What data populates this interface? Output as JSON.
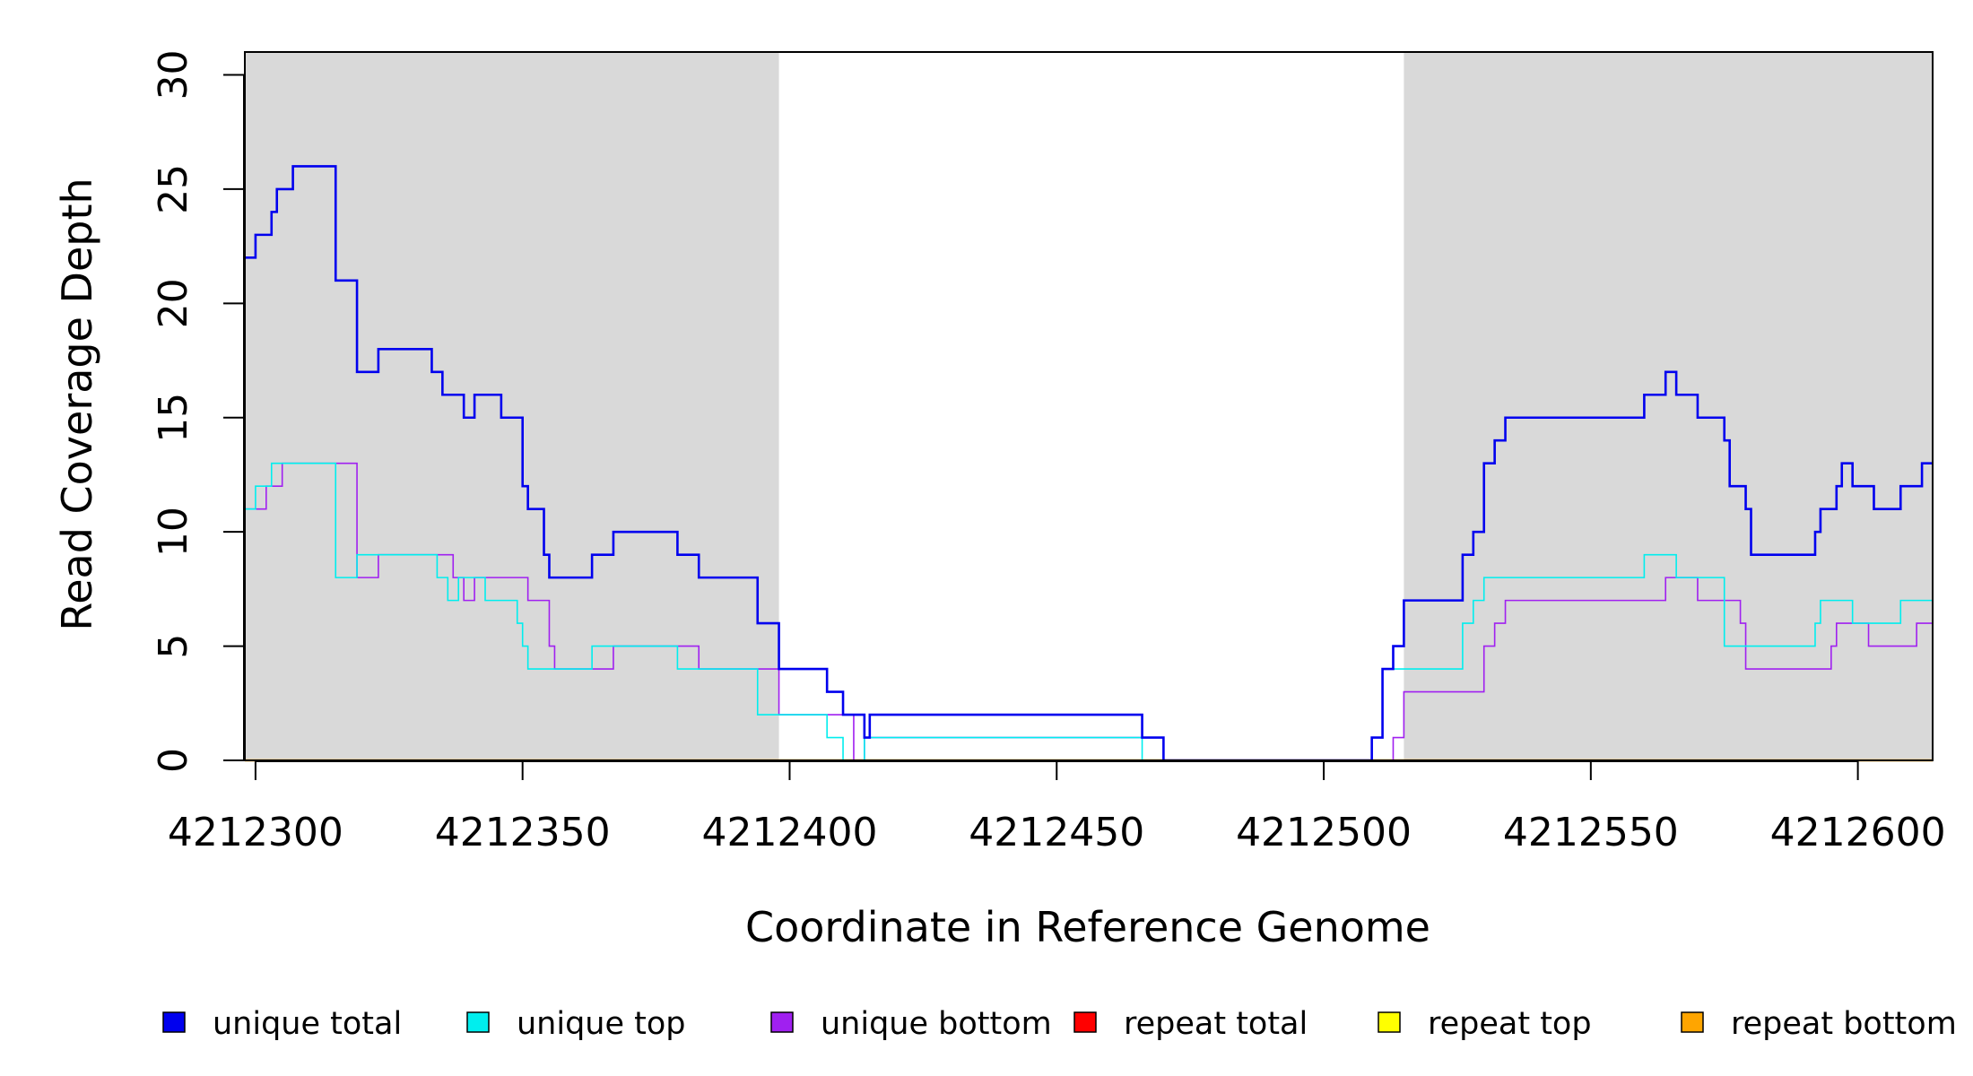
{
  "chart_data": {
    "type": "line",
    "title": "",
    "xlabel": "Coordinate in Reference Genome",
    "ylabel": "Read Coverage Depth",
    "xlim": [
      4212298,
      4212614
    ],
    "ylim": [
      0,
      31
    ],
    "xticks": [
      4212300,
      4212350,
      4212400,
      4212450,
      4212500,
      4212550,
      4212600
    ],
    "xtick_labels": [
      "4212300",
      "4212350",
      "4212400",
      "4212450",
      "4212500",
      "4212550",
      "4212600"
    ],
    "yticks": [
      0,
      5,
      10,
      15,
      20,
      25,
      30
    ],
    "ytick_labels": [
      "0",
      "5",
      "10",
      "15",
      "20",
      "25",
      "30"
    ],
    "grid": false,
    "legend_placement": "bottom",
    "shaded_regions": [
      [
        4212298,
        4212398
      ],
      [
        4212515,
        4212614
      ]
    ],
    "shade_color": "#d9d9d9",
    "series": [
      {
        "name": "unique total",
        "color": "#0000ee",
        "width": 2.6,
        "steps": [
          [
            4212298,
            22
          ],
          [
            4212300,
            23
          ],
          [
            4212303,
            24
          ],
          [
            4212304,
            25
          ],
          [
            4212307,
            26
          ],
          [
            4212315,
            21
          ],
          [
            4212319,
            17
          ],
          [
            4212323,
            18
          ],
          [
            4212333,
            17
          ],
          [
            4212335,
            16
          ],
          [
            4212339,
            15
          ],
          [
            4212341,
            16
          ],
          [
            4212346,
            15
          ],
          [
            4212350,
            12
          ],
          [
            4212351,
            11
          ],
          [
            4212354,
            9
          ],
          [
            4212355,
            8
          ],
          [
            4212363,
            9
          ],
          [
            4212367,
            10
          ],
          [
            4212379,
            9
          ],
          [
            4212383,
            8
          ],
          [
            4212394,
            6
          ],
          [
            4212398,
            4
          ],
          [
            4212407,
            3
          ],
          [
            4212410,
            2
          ],
          [
            4212414,
            1
          ],
          [
            4212415,
            2
          ],
          [
            4212466,
            1
          ],
          [
            4212470,
            0
          ],
          [
            4212509,
            1
          ],
          [
            4212511,
            4
          ],
          [
            4212513,
            5
          ],
          [
            4212515,
            7
          ],
          [
            4212526,
            9
          ],
          [
            4212528,
            10
          ],
          [
            4212530,
            13
          ],
          [
            4212532,
            14
          ],
          [
            4212534,
            15
          ],
          [
            4212560,
            16
          ],
          [
            4212564,
            17
          ],
          [
            4212566,
            16
          ],
          [
            4212570,
            15
          ],
          [
            4212575,
            14
          ],
          [
            4212576,
            12
          ],
          [
            4212579,
            11
          ],
          [
            4212580,
            9
          ],
          [
            4212592,
            10
          ],
          [
            4212593,
            11
          ],
          [
            4212596,
            12
          ],
          [
            4212597,
            13
          ],
          [
            4212599,
            12
          ],
          [
            4212603,
            11
          ],
          [
            4212608,
            12
          ],
          [
            4212612,
            13
          ],
          [
            4212614,
            13
          ]
        ]
      },
      {
        "name": "unique top",
        "color": "#00eeee",
        "width": 1.6,
        "steps": [
          [
            4212298,
            11
          ],
          [
            4212300,
            12
          ],
          [
            4212303,
            13
          ],
          [
            4212315,
            8
          ],
          [
            4212319,
            9
          ],
          [
            4212334,
            8
          ],
          [
            4212336,
            7
          ],
          [
            4212338,
            8
          ],
          [
            4212343,
            7
          ],
          [
            4212349,
            6
          ],
          [
            4212350,
            5
          ],
          [
            4212351,
            4
          ],
          [
            4212355,
            4
          ],
          [
            4212363,
            5
          ],
          [
            4212375,
            5
          ],
          [
            4212379,
            4
          ],
          [
            4212383,
            4
          ],
          [
            4212394,
            2
          ],
          [
            4212398,
            2
          ],
          [
            4212407,
            1
          ],
          [
            4212410,
            0
          ],
          [
            4212411,
            0
          ],
          [
            4212414,
            1
          ],
          [
            4212466,
            0
          ],
          [
            4212470,
            0
          ],
          [
            4212509,
            1
          ],
          [
            4212511,
            4
          ],
          [
            4212526,
            6
          ],
          [
            4212528,
            7
          ],
          [
            4212530,
            8
          ],
          [
            4212560,
            9
          ],
          [
            4212566,
            8
          ],
          [
            4212575,
            5
          ],
          [
            4212592,
            6
          ],
          [
            4212593,
            7
          ],
          [
            4212599,
            6
          ],
          [
            4212608,
            7
          ],
          [
            4212614,
            7
          ]
        ]
      },
      {
        "name": "unique bottom",
        "color": "#a020f0",
        "width": 1.6,
        "steps": [
          [
            4212298,
            11
          ],
          [
            4212302,
            12
          ],
          [
            4212305,
            13
          ],
          [
            4212319,
            8
          ],
          [
            4212323,
            9
          ],
          [
            4212337,
            8
          ],
          [
            4212339,
            7
          ],
          [
            4212341,
            8
          ],
          [
            4212351,
            7
          ],
          [
            4212355,
            5
          ],
          [
            4212356,
            4
          ],
          [
            4212367,
            5
          ],
          [
            4212383,
            4
          ],
          [
            4212398,
            2
          ],
          [
            4212412,
            0
          ],
          [
            4212414,
            1
          ],
          [
            4212470,
            0
          ],
          [
            4212513,
            1
          ],
          [
            4212515,
            3
          ],
          [
            4212530,
            5
          ],
          [
            4212532,
            6
          ],
          [
            4212534,
            7
          ],
          [
            4212564,
            8
          ],
          [
            4212570,
            7
          ],
          [
            4212578,
            6
          ],
          [
            4212579,
            4
          ],
          [
            4212595,
            5
          ],
          [
            4212596,
            6
          ],
          [
            4212602,
            5
          ],
          [
            4212611,
            6
          ],
          [
            4212614,
            6
          ]
        ]
      },
      {
        "name": "repeat total",
        "color": "#ff0000",
        "width": 2.0,
        "steps": [
          [
            4212298,
            0
          ],
          [
            4212614,
            0
          ]
        ]
      },
      {
        "name": "repeat top",
        "color": "#ffff00",
        "width": 2.0,
        "steps": [
          [
            4212298,
            0
          ],
          [
            4212614,
            0
          ]
        ]
      },
      {
        "name": "repeat bottom",
        "color": "#ffa500",
        "width": 2.4,
        "steps": [
          [
            4212298,
            0
          ],
          [
            4212614,
            0
          ]
        ]
      }
    ]
  },
  "legend": {
    "items": [
      {
        "label": "unique total",
        "color": "#0000ee"
      },
      {
        "label": "unique top",
        "color": "#00eeee"
      },
      {
        "label": "unique bottom",
        "color": "#a020f0"
      },
      {
        "label": "repeat total",
        "color": "#ff0000"
      },
      {
        "label": "repeat top",
        "color": "#ffff00"
      },
      {
        "label": "repeat bottom",
        "color": "#ffa500"
      }
    ]
  }
}
